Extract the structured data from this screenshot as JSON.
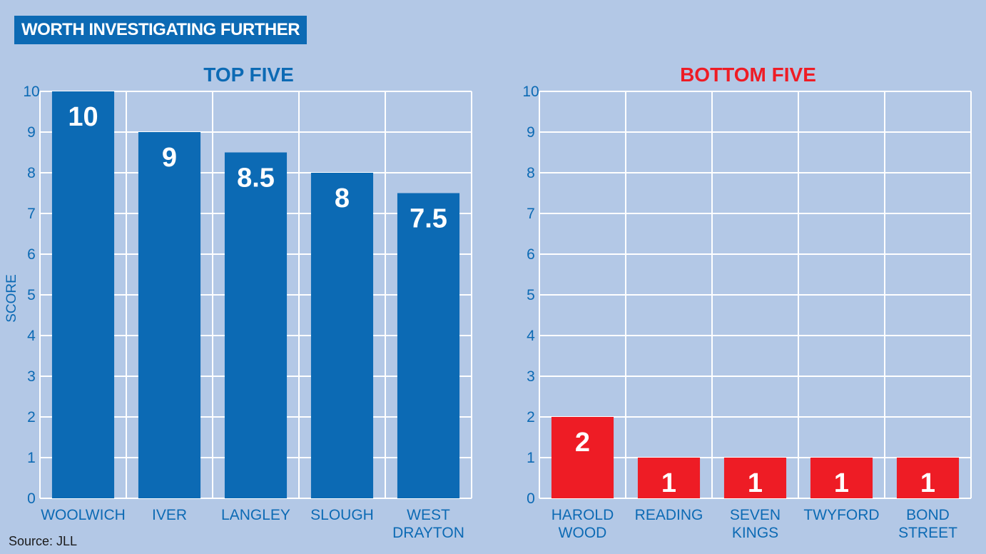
{
  "banner": "WORTH INVESTIGATING FURTHER",
  "source": "Source: JLL",
  "chart_data": [
    {
      "type": "bar",
      "title": "TOP FIVE",
      "title_color": "#0c6ab4",
      "bar_color": "#0c6ab4",
      "ylabel": "SCORE",
      "ylim": [
        0,
        10
      ],
      "yticks": [
        0,
        1,
        2,
        3,
        4,
        5,
        6,
        7,
        8,
        9,
        10
      ],
      "grid": true,
      "categories": [
        [
          "WOOLWICH"
        ],
        [
          "IVER"
        ],
        [
          "LANGLEY"
        ],
        [
          "SLOUGH"
        ],
        [
          "WEST",
          "DRAYTON"
        ]
      ],
      "values": [
        10,
        9,
        8.5,
        8,
        7.5
      ],
      "value_labels": [
        "10",
        "9",
        "8.5",
        "8",
        "7.5"
      ]
    },
    {
      "type": "bar",
      "title": "BOTTOM FIVE",
      "title_color": "#ee1c25",
      "bar_color": "#ee1c25",
      "ylabel": "",
      "ylim": [
        0,
        10
      ],
      "yticks": [
        0,
        1,
        2,
        3,
        4,
        5,
        6,
        7,
        8,
        9,
        10
      ],
      "grid": true,
      "categories": [
        [
          "HAROLD",
          "WOOD"
        ],
        [
          "READING"
        ],
        [
          "SEVEN",
          "KINGS"
        ],
        [
          "TWYFORD"
        ],
        [
          "BOND",
          "STREET"
        ]
      ],
      "values": [
        2,
        1,
        1,
        1,
        1
      ],
      "value_labels": [
        "2",
        "1",
        "1",
        "1",
        "1"
      ]
    }
  ]
}
